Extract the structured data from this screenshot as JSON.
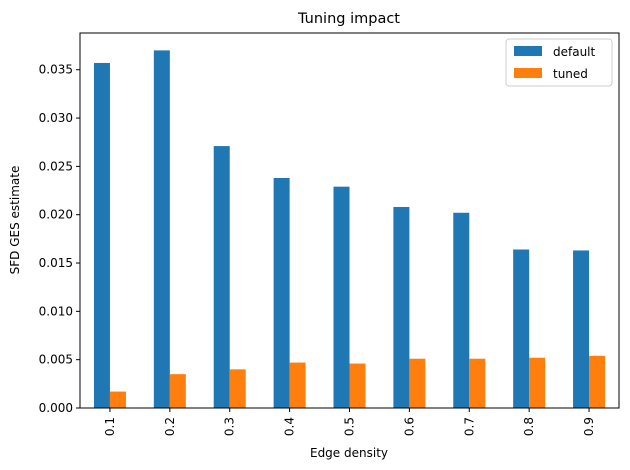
{
  "chart_data": {
    "type": "bar",
    "title": "Tuning impact",
    "xlabel": "Edge density",
    "ylabel": "SFD GES estimate",
    "categories": [
      "0.1",
      "0.2",
      "0.3",
      "0.4",
      "0.5",
      "0.6",
      "0.7",
      "0.8",
      "0.9"
    ],
    "series": [
      {
        "name": "default",
        "color": "#1f77b4",
        "values": [
          0.0357,
          0.037,
          0.0271,
          0.0238,
          0.0229,
          0.0208,
          0.0202,
          0.0164,
          0.0163
        ]
      },
      {
        "name": "tuned",
        "color": "#ff7f0e",
        "values": [
          0.0017,
          0.0035,
          0.004,
          0.0047,
          0.0046,
          0.0051,
          0.0051,
          0.0052,
          0.0054
        ]
      }
    ],
    "ylim": [
      0,
      0.0388
    ],
    "yticks": [
      "0.000",
      "0.005",
      "0.010",
      "0.015",
      "0.020",
      "0.025",
      "0.030",
      "0.035"
    ],
    "grid": false,
    "legend_position": "top-right"
  }
}
